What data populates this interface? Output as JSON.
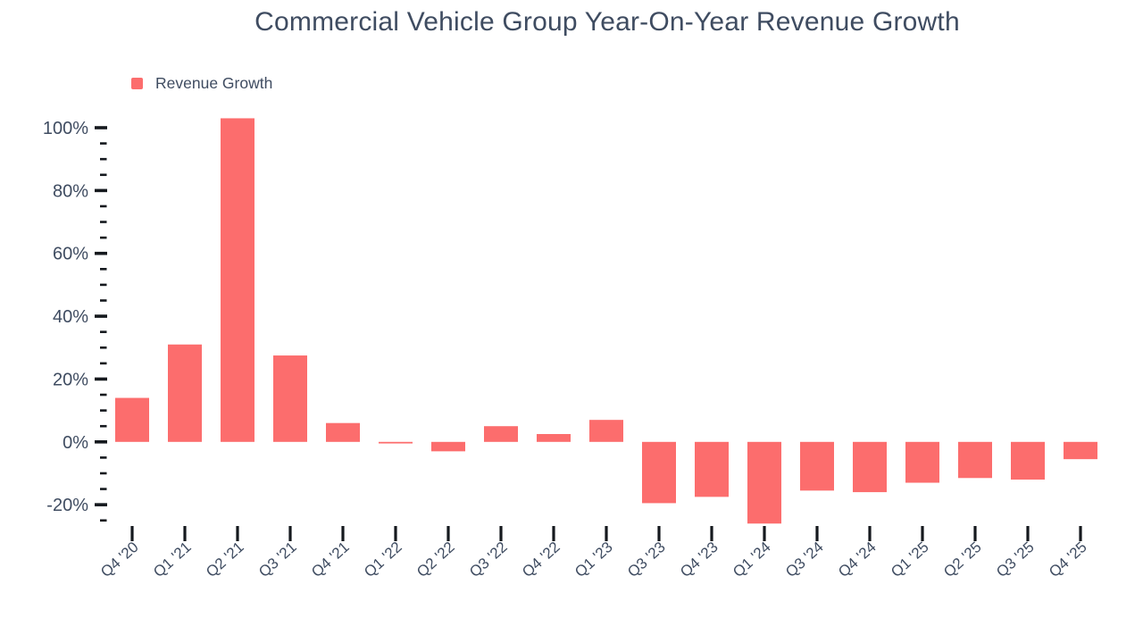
{
  "chart_data": {
    "type": "bar",
    "title": "Commercial Vehicle Group Year-On-Year Revenue Growth",
    "legend": [
      "Revenue Growth"
    ],
    "legend_position": "top-left",
    "unit": "%",
    "categories": [
      "Q4 '20",
      "Q1 '21",
      "Q2 '21",
      "Q3 '21",
      "Q4 '21",
      "Q1 '22",
      "Q2 '22",
      "Q3 '22",
      "Q4 '22",
      "Q1 '23",
      "Q3 '23",
      "Q4 '23",
      "Q1 '24",
      "Q3 '24",
      "Q4 '24",
      "Q1 '25",
      "Q2 '25",
      "Q3 '25",
      "Q4 '25"
    ],
    "values": [
      14,
      31,
      103,
      27.5,
      6,
      -0.5,
      -3,
      5,
      2.5,
      7,
      -19.5,
      -17.5,
      -26,
      -15.5,
      -16,
      -13,
      -11.5,
      -12,
      -5.5
    ],
    "xlabel": "",
    "ylabel": "",
    "ylim": [
      -27,
      105
    ],
    "y_major_ticks": [
      100,
      80,
      60,
      40,
      20,
      0,
      -20
    ],
    "y_tick_labels": [
      "100%",
      "80%",
      "60%",
      "40%",
      "20%",
      "0%",
      "-20%"
    ],
    "y_minor_tick_step": 5,
    "y_minor_tick_range": [
      -25,
      100
    ],
    "grid": false,
    "colors": {
      "bar": "#fc6d6d",
      "text": "#3f4c61",
      "tick": "#15191e",
      "background": "#ffffff"
    }
  }
}
